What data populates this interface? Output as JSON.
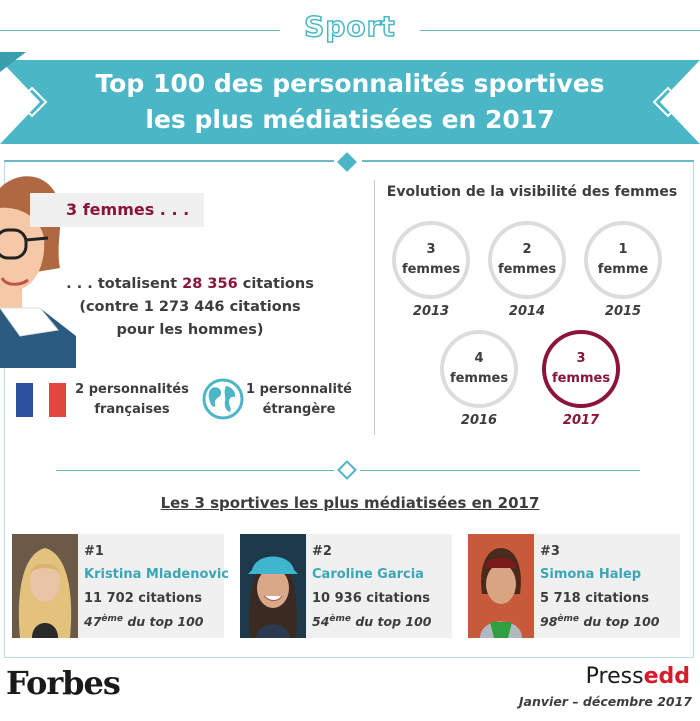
{
  "header": {
    "category": "Sport",
    "title_line1": "Top 100 des personnalités sportives",
    "title_line2": "les plus médiatisées en 2017"
  },
  "women_summary": {
    "count_label": "3 femmes . . .",
    "totals_prefix": ". . . totalisent",
    "totals_value": "28 356",
    "totals_suffix": "citations",
    "comparison_line1": "(contre 1 273 446 citations",
    "comparison_line2": "pour les hommes)"
  },
  "nationality": {
    "french_line1": "2 personnalités",
    "french_line2": "françaises",
    "foreign_line1": "1 personnalité",
    "foreign_line2": "étrangère"
  },
  "evolution": {
    "title": "Evolution de la visibilité des femmes",
    "years": [
      {
        "count": "3",
        "unit": "femmes",
        "year": "2013"
      },
      {
        "count": "2",
        "unit": "femmes",
        "year": "2014"
      },
      {
        "count": "1",
        "unit": "femme",
        "year": "2015"
      },
      {
        "count": "4",
        "unit": "femmes",
        "year": "2016"
      },
      {
        "count": "3",
        "unit": "femmes",
        "year": "2017"
      }
    ]
  },
  "top3": {
    "title": "Les 3 sportives les plus médiatisées en 2017",
    "athletes": [
      {
        "rank": "#1",
        "name": "Kristina Mladenovic",
        "citations": "11 702 citations",
        "position": "47",
        "position_suffix": "ème",
        "position_text": " du top 100"
      },
      {
        "rank": "#2",
        "name": "Caroline Garcia",
        "citations": "10 936 citations",
        "position": "54",
        "position_suffix": "ème",
        "position_text": " du top 100"
      },
      {
        "rank": "#3",
        "name": "Simona Halep",
        "citations": "5 718 citations",
        "position": "98",
        "position_suffix": "ème",
        "position_text": " du top 100"
      }
    ]
  },
  "footer": {
    "brand_left": "Forbes",
    "brand_right_a": "Press",
    "brand_right_b": "edd",
    "period": "Janvier – décembre 2017"
  },
  "colors": {
    "teal": "#4bb7c6",
    "burgundy": "#8a1538",
    "name_blue": "#3aa7b6"
  }
}
